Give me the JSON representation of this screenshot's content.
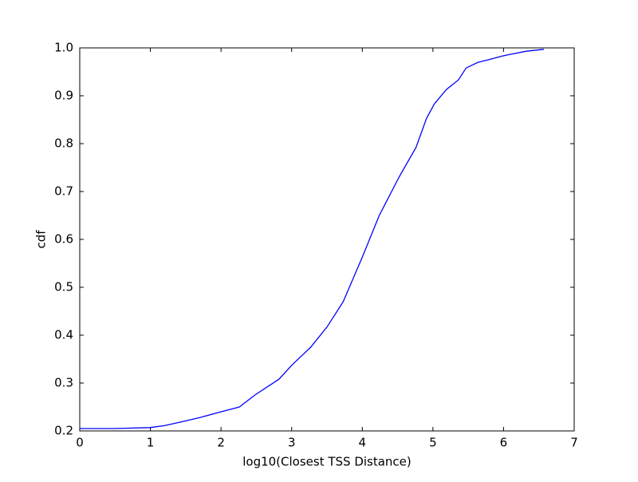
{
  "chart_data": {
    "type": "line",
    "xlabel": "log10(Closest TSS Distance)",
    "ylabel": "cdf",
    "xlim": [
      0,
      7
    ],
    "xticks": [
      0,
      1,
      2,
      3,
      4,
      5,
      6,
      7
    ],
    "ylim": [
      0.2,
      1.0
    ],
    "yticks": [
      0.2,
      0.3,
      0.4,
      0.5,
      0.6,
      0.7,
      0.8,
      0.9,
      {
        "value": 1.0,
        "label": "1.0"
      }
    ],
    "grid": false,
    "series": [
      {
        "color": "#0000ff",
        "x": [
          0,
          0.5,
          0.99,
          1.2,
          1.47,
          1.7,
          2.0,
          2.26,
          2.48,
          2.82,
          3.0,
          3.27,
          3.5,
          3.73,
          4.0,
          4.24,
          4.52,
          4.76,
          4.91,
          5.02,
          5.19,
          5.36,
          5.47,
          5.64,
          5.78,
          5.98,
          6.32,
          6.57
        ],
        "values": [
          0.205,
          0.205,
          0.207,
          0.211,
          0.22,
          0.228,
          0.24,
          0.25,
          0.275,
          0.308,
          0.337,
          0.375,
          0.417,
          0.47,
          0.563,
          0.65,
          0.73,
          0.792,
          0.853,
          0.883,
          0.913,
          0.933,
          0.958,
          0.97,
          0.975,
          0.983,
          0.993,
          0.997
        ]
      }
    ]
  }
}
